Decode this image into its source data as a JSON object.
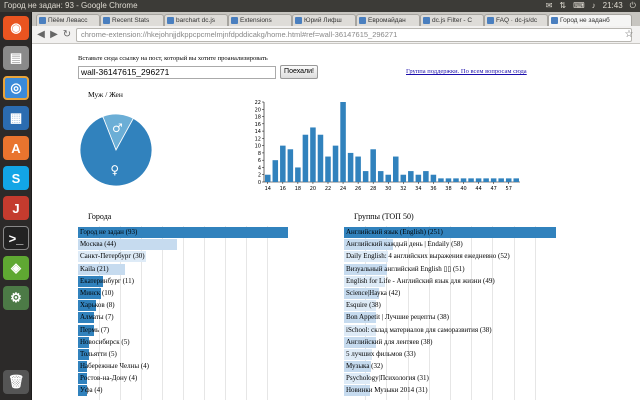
{
  "window": {
    "title": "Город не задан: 93 - Google Chrome",
    "tray": {
      "time": "21:43"
    }
  },
  "browser": {
    "tabs": [
      "Пёём Левасс",
      "Recent Stats",
      "barchart dc.js",
      "Extensions",
      "Юрий Лифш",
      "Евромайдан",
      "dc.js Filter - C",
      "FAQ · dc-js/dc",
      "Город не заданб"
    ],
    "url": "chrome-extension://hkejohnjjdkppcpcmelmjnfdpddicakg/home.html#ref=wall-36147615_296271"
  },
  "form": {
    "prompt": "Вставьте сюда ссылку на пост, который вы хотите проанализировать",
    "input_value": "wall-36147615_296271",
    "button_label": "Поехали!",
    "support_link": "Группа поддержки. По всем вопросам сюда"
  },
  "colors": {
    "accent": "#3182bd",
    "accent_light": "#6baed6",
    "row_fill": "#c6dbef",
    "row_fill_light": "#deebf7"
  },
  "gender": {
    "title": "Муж / Жен",
    "male_symbol": "♂",
    "female_symbol": "♀",
    "male_share": 0.14,
    "female_share": 0.86
  },
  "chart_data": {
    "type": "bar",
    "title": "",
    "xlabel": "",
    "ylabel": "",
    "categories": [
      "14",
      "15",
      "16",
      "17",
      "18",
      "19",
      "20",
      "21",
      "22",
      "23",
      "24",
      "25",
      "26",
      "27",
      "28",
      "29",
      "30",
      "31",
      "32",
      "33",
      "34",
      "35",
      "36",
      "37",
      "38",
      "39",
      "40",
      "41",
      "44",
      "45",
      "47",
      "51",
      "57",
      "77"
    ],
    "values": [
      2,
      6,
      10,
      9,
      4,
      13,
      15,
      13,
      7,
      10,
      22,
      8,
      7,
      3,
      9,
      3,
      2,
      7,
      2,
      3,
      2,
      3,
      2,
      1,
      1,
      1,
      1,
      1,
      1,
      1,
      1,
      1,
      1,
      1
    ],
    "tick_labels": [
      "14",
      "16",
      "18",
      "20",
      "22",
      "24",
      "26",
      "28",
      "30",
      "32",
      "34",
      "36",
      "38",
      "40",
      "44",
      "47",
      "57"
    ],
    "yticks": [
      0,
      2,
      4,
      6,
      8,
      10,
      12,
      14,
      16,
      18,
      20,
      22
    ],
    "ylim": [
      0,
      22
    ],
    "grid": false
  },
  "cities": {
    "title": "Города",
    "items": [
      {
        "label": "Город не задан (93)",
        "value": 93
      },
      {
        "label": "Москва (44)",
        "value": 44
      },
      {
        "label": "Санкт-Петербург (30)",
        "value": 30
      },
      {
        "label": "Kaila (21)",
        "value": 21
      },
      {
        "label": "Екатеринбург (11)",
        "value": 11
      },
      {
        "label": "Минск (10)",
        "value": 10
      },
      {
        "label": "Харьков (8)",
        "value": 8
      },
      {
        "label": "Алматы (7)",
        "value": 7
      },
      {
        "label": "Пермь (7)",
        "value": 7
      },
      {
        "label": "Новосибирск (5)",
        "value": 5
      },
      {
        "label": "Тольятти (5)",
        "value": 5
      },
      {
        "label": "Набережные Челны (4)",
        "value": 4
      },
      {
        "label": "Ростов-на-Дону (4)",
        "value": 4
      },
      {
        "label": "Уфа (4)",
        "value": 4
      }
    ]
  },
  "groups": {
    "title": "Группы (ТОП 50)",
    "items": [
      {
        "label": "Английский язык (English) (251)",
        "value": 251
      },
      {
        "label": "Английский каждый день | Endaily (58)",
        "value": 58
      },
      {
        "label": "Daily English: 4 английских выражения ежедневно (52)",
        "value": 52
      },
      {
        "label": "Визуальный английский English ▯▯ (51)",
        "value": 51
      },
      {
        "label": "English for Life - Английский язык для жизни (49)",
        "value": 49
      },
      {
        "label": "Science|Наука (42)",
        "value": 42
      },
      {
        "label": "Esquire (38)",
        "value": 38
      },
      {
        "label": "Bon Appetit | Лучшие рецепты (38)",
        "value": 38
      },
      {
        "label": "iSchool: склад материалов для саморазвития (38)",
        "value": 38
      },
      {
        "label": "Английский для лентяев (38)",
        "value": 38
      },
      {
        "label": "5 лучших фильмов (33)",
        "value": 33
      },
      {
        "label": "Музыка (32)",
        "value": 32
      },
      {
        "label": "Psychology|Психология (31)",
        "value": 31
      },
      {
        "label": "Новинки Музыки 2014 (31)",
        "value": 31
      }
    ]
  }
}
